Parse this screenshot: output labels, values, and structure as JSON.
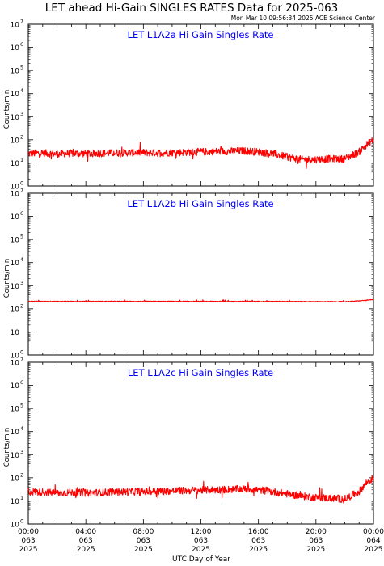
{
  "header": {
    "title": "LET ahead Hi-Gain SINGLES RATES Data for 2025-063",
    "timestamp": "Mon Mar 10 09:56:34 2025 ACE Science Center"
  },
  "colors": {
    "series": "#ff0000",
    "panel_title": "#0000ff",
    "axes": "#000000"
  },
  "chart_data": [
    {
      "type": "line",
      "title": "LET L1A2a Hi Gain Singles Rate",
      "ylabel": "Counts/min",
      "yscale": "log",
      "ylim": [
        1,
        10000000
      ],
      "yticks": [
        {
          "b": "10",
          "e": "0"
        },
        {
          "b": "10",
          "e": "1"
        },
        {
          "b": "10",
          "e": "2"
        },
        {
          "b": "10",
          "e": "3"
        },
        {
          "b": "10",
          "e": "4"
        },
        {
          "b": "10",
          "e": "5"
        },
        {
          "b": "10",
          "e": "6"
        },
        {
          "b": "10",
          "e": "7"
        }
      ],
      "series": [
        {
          "x_hours": [
            0,
            1,
            2,
            3,
            4,
            5,
            6,
            7,
            8,
            9,
            10,
            11,
            12,
            13,
            14,
            15,
            16,
            17,
            18,
            19,
            20,
            21,
            22,
            23,
            23.5,
            24
          ],
          "values": [
            25,
            27,
            24,
            26,
            25,
            26,
            27,
            28,
            28,
            27,
            28,
            29,
            30,
            31,
            32,
            33,
            30,
            25,
            18,
            14,
            14,
            15,
            15,
            30,
            60,
            100
          ]
        }
      ]
    },
    {
      "type": "line",
      "title": "LET L1A2b Hi Gain Singles Rate",
      "ylabel": "Counts/min",
      "yscale": "log",
      "ylim": [
        1,
        10000000
      ],
      "yticks": [
        {
          "b": "10",
          "e": "0"
        },
        {
          "b": "10",
          "e": ""
        },
        {
          "b": "10",
          "e": "2"
        },
        {
          "b": "10",
          "e": "3"
        },
        {
          "b": "10",
          "e": "4"
        },
        {
          "b": "10",
          "e": "5"
        },
        {
          "b": "10",
          "e": "6"
        },
        {
          "b": "10",
          "e": "7"
        }
      ],
      "series": [
        {
          "x_hours": [
            0,
            2,
            4,
            6,
            8,
            10,
            12,
            14,
            16,
            18,
            20,
            22,
            23,
            24
          ],
          "values": [
            210,
            210,
            210,
            210,
            210,
            210,
            210,
            210,
            210,
            210,
            205,
            205,
            220,
            250
          ]
        }
      ]
    },
    {
      "type": "line",
      "title": "LET L1A2c Hi Gain Singles Rate",
      "ylabel": "Counts/min",
      "yscale": "log",
      "ylim": [
        1,
        10000000
      ],
      "yticks": [
        {
          "b": "10",
          "e": "0"
        },
        {
          "b": "10",
          "e": "1"
        },
        {
          "b": "10",
          "e": "2"
        },
        {
          "b": "10",
          "e": "3"
        },
        {
          "b": "10",
          "e": "4"
        },
        {
          "b": "10",
          "e": "5"
        },
        {
          "b": "10",
          "e": "6"
        },
        {
          "b": "10",
          "e": "7"
        }
      ],
      "series": [
        {
          "x_hours": [
            0,
            1,
            2,
            3,
            4,
            5,
            6,
            7,
            8,
            9,
            10,
            11,
            12,
            13,
            14,
            15,
            16,
            17,
            18,
            19,
            20,
            21,
            22,
            23,
            23.5,
            24
          ],
          "values": [
            25,
            24,
            22,
            23,
            22,
            23,
            24,
            25,
            25,
            26,
            27,
            28,
            29,
            30,
            31,
            33,
            30,
            25,
            20,
            16,
            14,
            13,
            12,
            25,
            60,
            100
          ]
        }
      ]
    }
  ],
  "x_axis": {
    "label": "UTC Day of Year",
    "ticks": [
      {
        "time": "00:00",
        "doy": "063",
        "year": "2025"
      },
      {
        "time": "04:00",
        "doy": "063",
        "year": "2025"
      },
      {
        "time": "08:00",
        "doy": "063",
        "year": "2025"
      },
      {
        "time": "12:00",
        "doy": "063",
        "year": "2025"
      },
      {
        "time": "16:00",
        "doy": "063",
        "year": "2025"
      },
      {
        "time": "20:00",
        "doy": "063",
        "year": "2025"
      },
      {
        "time": "00:00",
        "doy": "064",
        "year": "2025"
      }
    ]
  }
}
